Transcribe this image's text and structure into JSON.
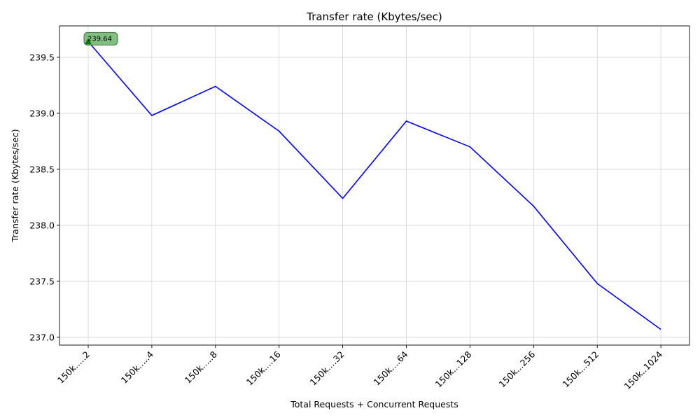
{
  "chart_data": {
    "type": "line",
    "title": "Transfer rate (Kbytes/sec)",
    "xlabel": "Total Requests + Concurrent Requests",
    "ylabel": "Transfer rate (Kbytes/sec)",
    "categories": [
      "150k.....2",
      "150k.....4",
      "150k.....8",
      "150k....16",
      "150k....32",
      "150k....64",
      "150k...128",
      "150k...256",
      "150k...512",
      "150k..1024"
    ],
    "series": [
      {
        "color": "#0000ff",
        "values": [
          239.64,
          238.98,
          239.24,
          238.84,
          238.24,
          238.93,
          238.7,
          238.17,
          237.48,
          237.07
        ]
      }
    ],
    "yticks": [
      237.0,
      237.5,
      238.0,
      238.5,
      239.0,
      239.5
    ],
    "ytick_labels": [
      "237.0",
      "237.5",
      "238.0",
      "238.5",
      "239.0",
      "239.5"
    ],
    "ylim": [
      236.93,
      239.78
    ],
    "grid": true,
    "annotation": {
      "label": "239.64",
      "category_index": 0,
      "value": 239.64,
      "marker": "triangle-up",
      "box_color": "#7fbf7f",
      "marker_color": "#008000"
    }
  }
}
